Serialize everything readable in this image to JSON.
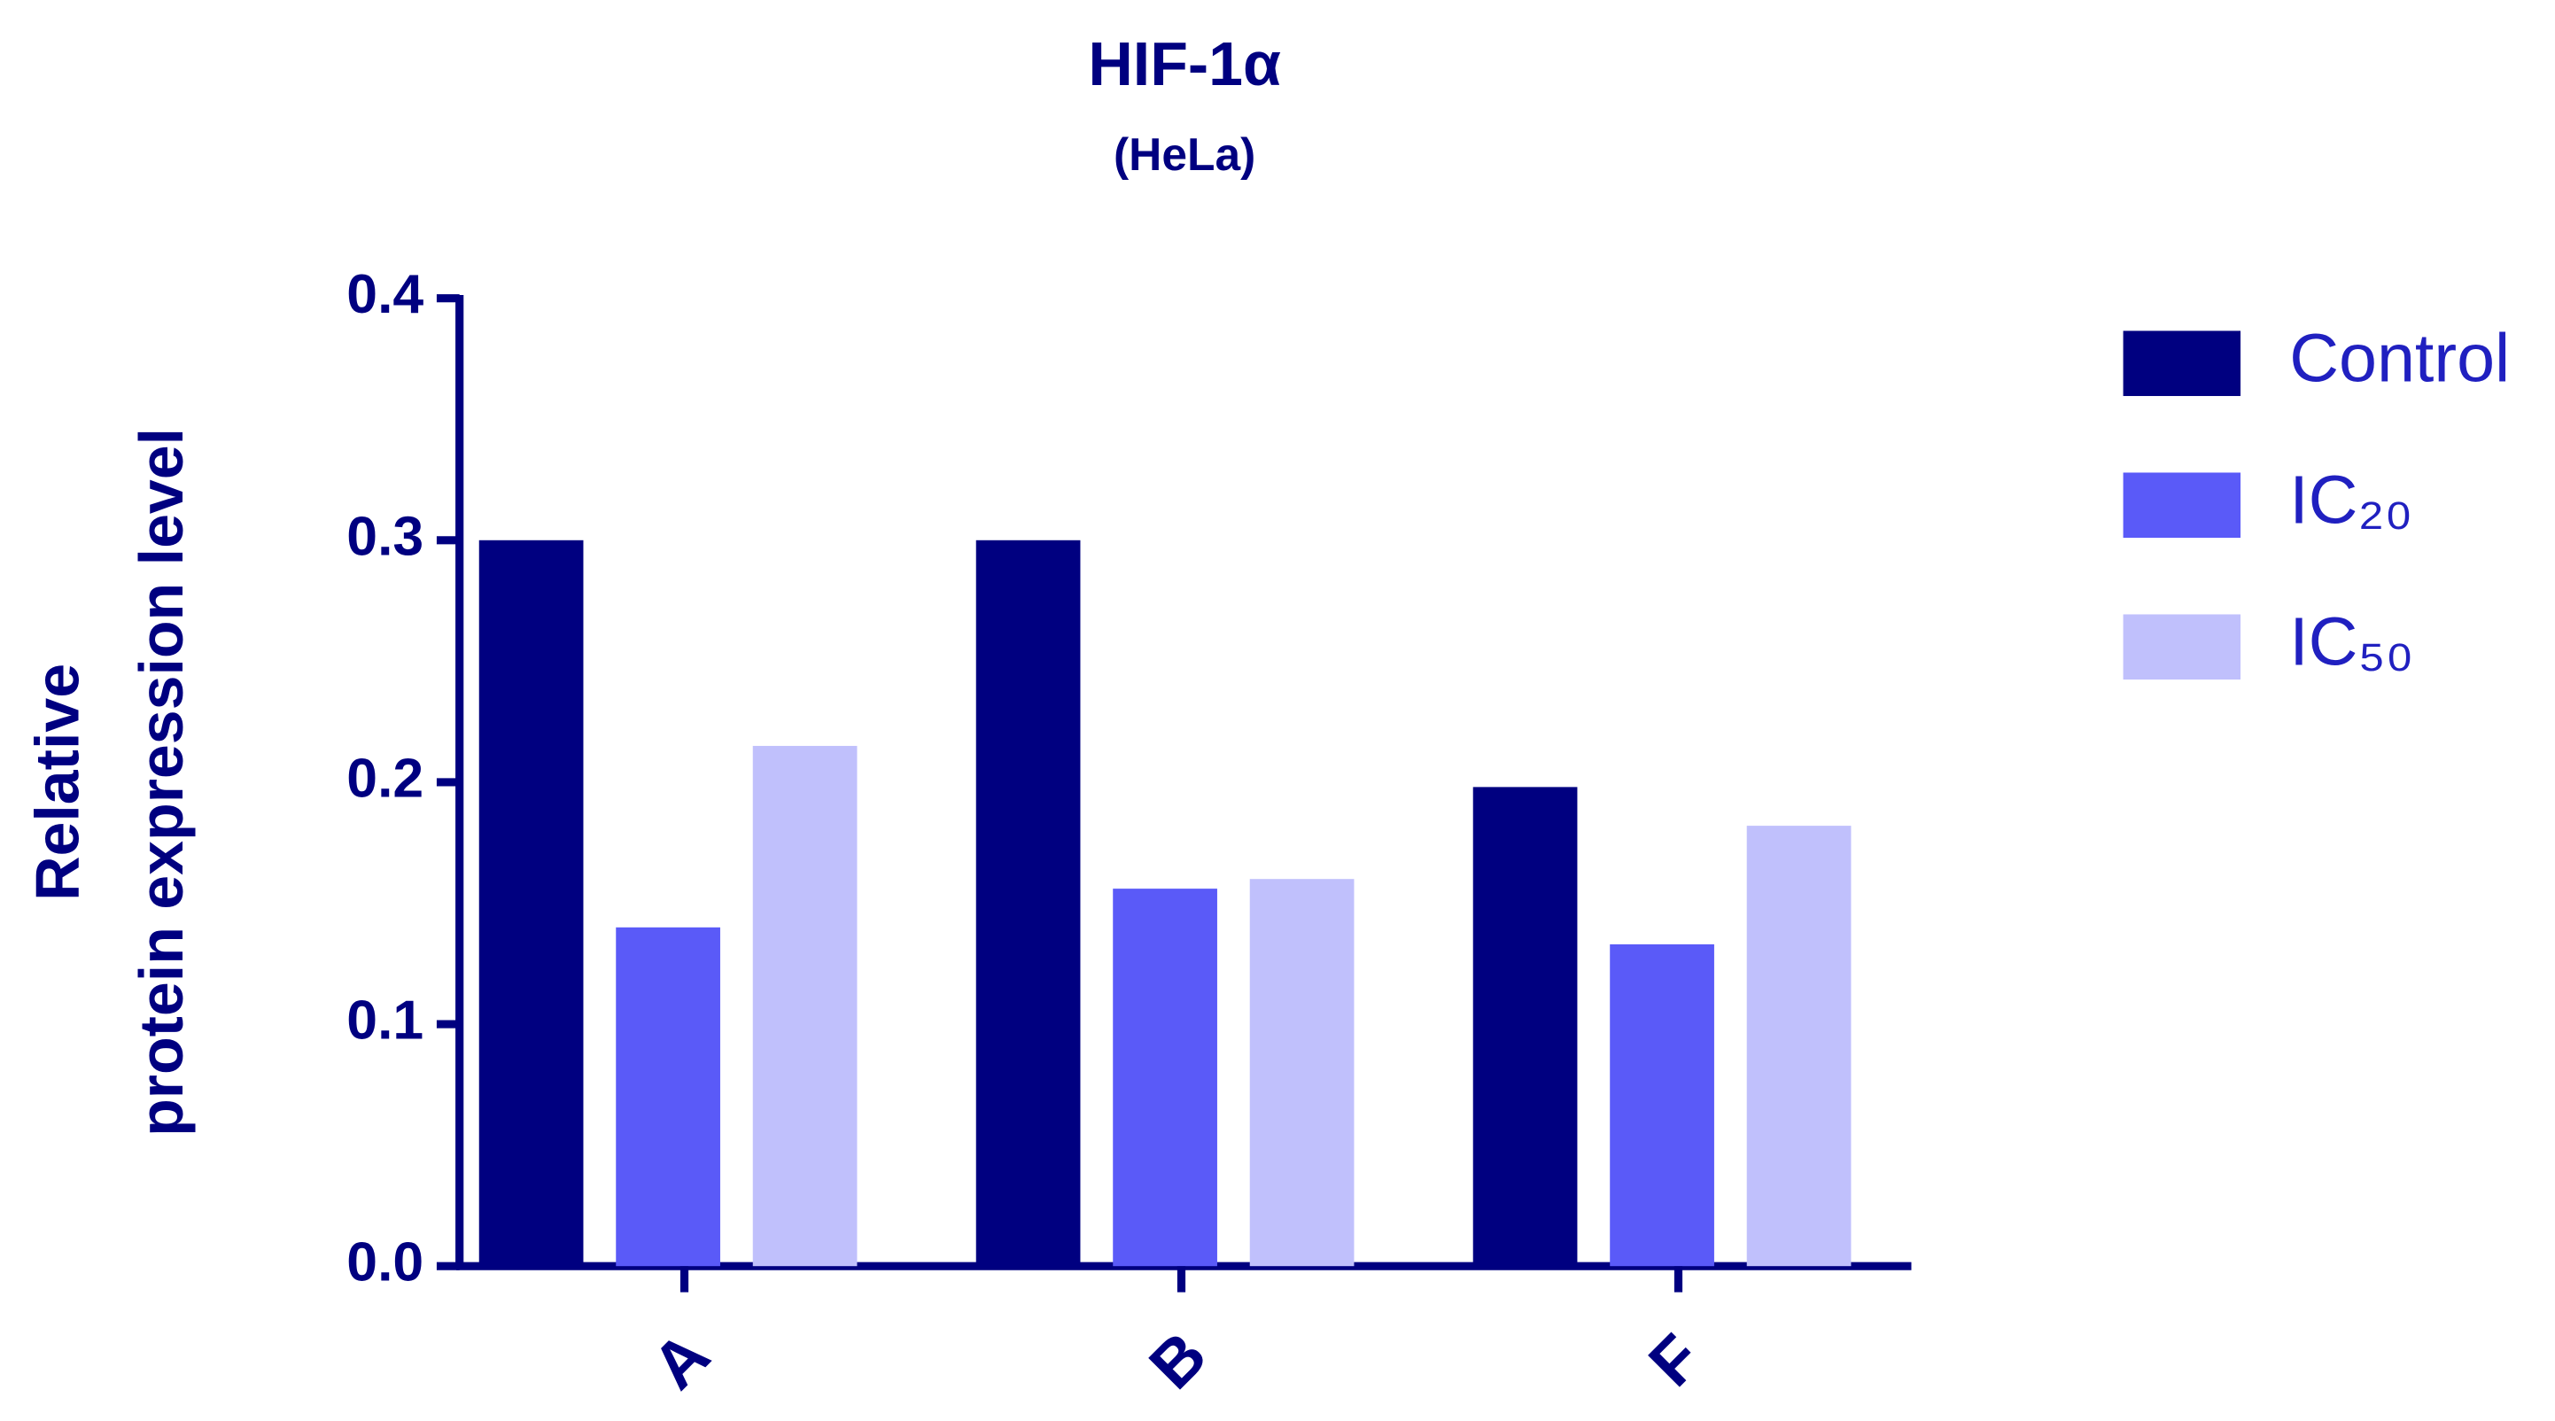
{
  "chart_data": {
    "type": "bar",
    "title": "HIF-1α",
    "subtitle": "(HeLa)",
    "y_label": [
      "Relative",
      "protein expression level"
    ],
    "categories": [
      "A",
      "B",
      "F"
    ],
    "series": [
      {
        "name": "Control",
        "color": "#000080",
        "values": [
          0.3,
          0.3,
          0.198
        ]
      },
      {
        "name": "IC₂₀",
        "color": "#5a5af8",
        "values": [
          0.14,
          0.156,
          0.133
        ]
      },
      {
        "name": "IC₅₀",
        "color": "#c0c0fc",
        "values": [
          0.215,
          0.16,
          0.182
        ]
      }
    ],
    "ylim": [
      0,
      0.4
    ],
    "yticks": [
      {
        "value": 0,
        "label": "0.0"
      },
      0.1,
      0.2,
      0.3,
      0.4
    ],
    "legend": "right"
  }
}
